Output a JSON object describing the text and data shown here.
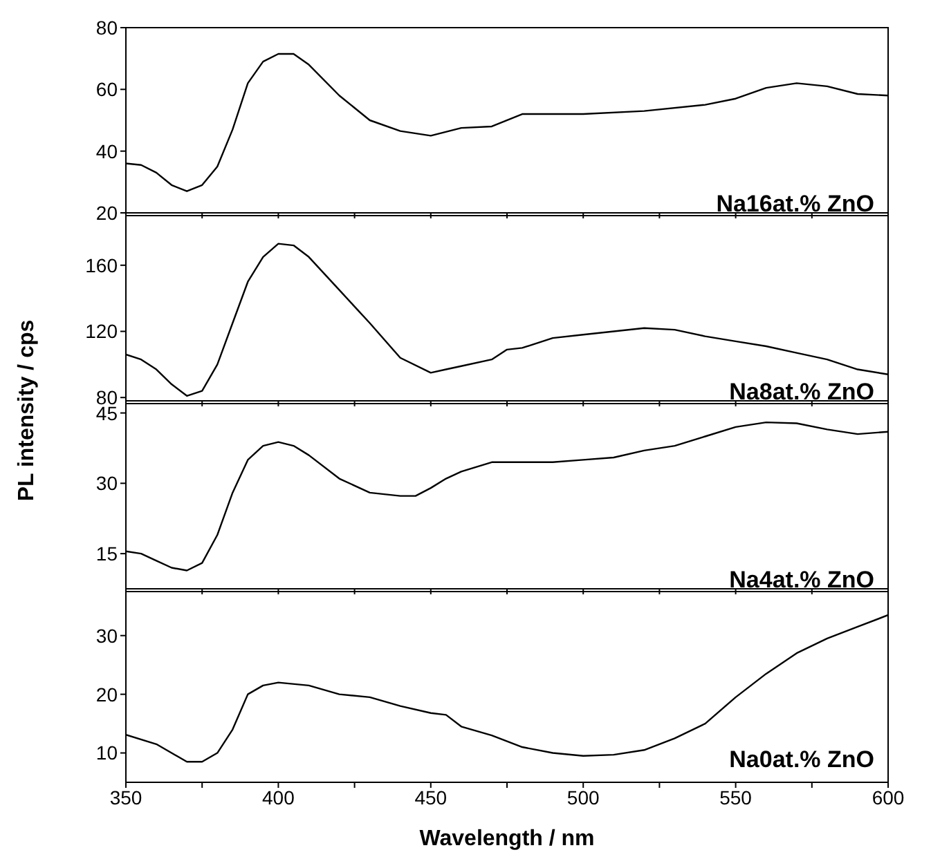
{
  "chart_data": [
    {
      "type": "line",
      "x": [
        350,
        355,
        360,
        365,
        370,
        375,
        380,
        385,
        390,
        395,
        400,
        405,
        410,
        420,
        430,
        440,
        450,
        460,
        470,
        480,
        500,
        520,
        540,
        550,
        560,
        570,
        580,
        590,
        600
      ],
      "series": [
        {
          "name": "Na16at.% ZnO",
          "color": "#000000",
          "values": [
            36,
            35.5,
            33,
            29,
            27,
            29,
            35,
            47,
            62,
            69,
            71.5,
            71.5,
            68,
            58,
            50,
            46.5,
            45,
            47.5,
            48,
            52,
            52,
            53,
            55,
            57,
            60.5,
            62,
            61,
            58.5,
            58
          ]
        }
      ],
      "xlim": [
        350,
        600
      ],
      "xticks": [
        350,
        {
          "value": 375,
          "label": null
        },
        400,
        {
          "value": 425,
          "label": null
        },
        450,
        {
          "value": 475,
          "label": null
        },
        500,
        {
          "value": 525,
          "label": null
        },
        550,
        {
          "value": 575,
          "label": null
        },
        600
      ],
      "ylim": [
        20,
        80
      ],
      "yticks": [
        20,
        40,
        60,
        80
      ],
      "tick_labels": "y",
      "legend": "bottom right",
      "marker": "none",
      "line_style": "solid",
      "grid": false
    },
    {
      "type": "line",
      "x": [
        350,
        355,
        360,
        365,
        370,
        375,
        380,
        385,
        390,
        395,
        400,
        405,
        410,
        420,
        430,
        440,
        450,
        455,
        460,
        470,
        475,
        480,
        490,
        500,
        510,
        520,
        530,
        540,
        550,
        560,
        570,
        580,
        590,
        600
      ],
      "series": [
        {
          "name": "Na8at.% ZnO",
          "color": "#000000",
          "values": [
            106,
            103,
            97,
            88,
            81,
            84,
            100,
            125,
            150,
            165,
            173,
            172,
            165,
            145,
            125,
            104,
            95,
            97,
            99,
            103,
            109,
            110,
            116,
            118,
            120,
            122,
            121,
            117,
            114,
            111,
            107,
            103,
            97,
            94
          ]
        }
      ],
      "xlim": [
        350,
        600
      ],
      "xticks": [
        350,
        {
          "value": 375,
          "label": null
        },
        400,
        {
          "value": 425,
          "label": null
        },
        450,
        {
          "value": 475,
          "label": null
        },
        500,
        {
          "value": 525,
          "label": null
        },
        550,
        {
          "value": 575,
          "label": null
        },
        600
      ],
      "ylim": [
        78,
        190
      ],
      "yticks": [
        80,
        120,
        160
      ],
      "ylabel": "PL intensity / cps",
      "tick_labels": "y",
      "legend": "bottom right",
      "marker": "none",
      "line_style": "solid",
      "grid": false
    },
    {
      "type": "line",
      "x": [
        350,
        355,
        360,
        365,
        370,
        375,
        380,
        385,
        390,
        395,
        400,
        405,
        410,
        420,
        430,
        440,
        445,
        450,
        455,
        460,
        470,
        480,
        490,
        500,
        510,
        520,
        530,
        540,
        550,
        560,
        570,
        580,
        590,
        600
      ],
      "series": [
        {
          "name": "Na4at.% ZnO",
          "color": "#000000",
          "values": [
            15.5,
            15,
            13.5,
            12,
            11.4,
            13,
            19,
            28,
            35,
            38,
            38.8,
            38,
            36,
            31,
            28,
            27.3,
            27.3,
            29,
            31,
            32.5,
            34.5,
            34.5,
            34.5,
            35,
            35.5,
            37,
            38,
            40,
            42,
            43,
            42.8,
            41.5,
            40.5,
            41
          ]
        }
      ],
      "xlim": [
        350,
        600
      ],
      "xticks": [
        350,
        {
          "value": 375,
          "label": null
        },
        400,
        {
          "value": 425,
          "label": null
        },
        450,
        {
          "value": 475,
          "label": null
        },
        500,
        {
          "value": 525,
          "label": null
        },
        550,
        {
          "value": 575,
          "label": null
        },
        600
      ],
      "ylim": [
        7.5,
        47
      ],
      "yticks": [
        15,
        30,
        45
      ],
      "tick_labels": "y",
      "legend": "bottom right",
      "marker": "none",
      "line_style": "solid",
      "grid": false
    },
    {
      "type": "line",
      "x": [
        350,
        360,
        370,
        375,
        380,
        385,
        390,
        395,
        400,
        410,
        420,
        430,
        440,
        450,
        455,
        460,
        470,
        480,
        490,
        500,
        510,
        520,
        530,
        540,
        550,
        560,
        570,
        580,
        590,
        600
      ],
      "series": [
        {
          "name": "Na0at.% ZnO",
          "color": "#000000",
          "values": [
            13.1,
            11.5,
            8.5,
            8.5,
            10,
            14,
            20,
            21.5,
            22,
            21.5,
            20,
            19.5,
            18,
            16.8,
            16.5,
            14.5,
            13,
            11,
            10,
            9.5,
            9.7,
            10.5,
            12.5,
            15,
            19.5,
            23.5,
            27,
            29.5,
            31.5,
            33.5
          ]
        }
      ],
      "xlim": [
        350,
        600
      ],
      "xticks": [
        350,
        {
          "value": 375,
          "label": null
        },
        400,
        {
          "value": 425,
          "label": null
        },
        450,
        {
          "value": 475,
          "label": null
        },
        500,
        {
          "value": 525,
          "label": null
        },
        550,
        {
          "value": 575,
          "label": null
        },
        600
      ],
      "ylim": [
        5,
        37.5
      ],
      "yticks": [
        10,
        20,
        30
      ],
      "xlabel": "Wavelength / nm",
      "legend": "bottom right",
      "marker": "none",
      "line_style": "solid",
      "grid": false
    }
  ]
}
